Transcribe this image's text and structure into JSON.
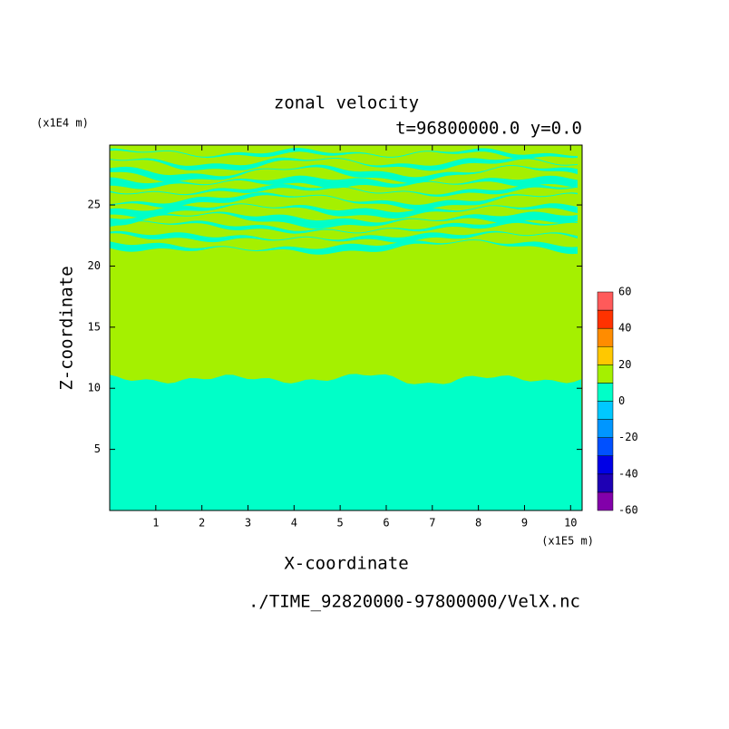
{
  "chart_data": {
    "type": "contour",
    "title": "zonal velocity",
    "subtitle": "t=96800000.0 y=0.0",
    "x_label": "X-coordinate",
    "y_label": "Z-coordinate",
    "x_unit": "(x1E5 m)",
    "y_unit": "(x1E4 m)",
    "source": "./TIME_92820000-97800000/VelX.nc",
    "xlim": [
      0,
      10.25
    ],
    "xticks": [
      1,
      2,
      3,
      4,
      5,
      6,
      7,
      8,
      9,
      10
    ],
    "ylim": [
      0,
      29.9
    ],
    "yticks": [
      5,
      10,
      15,
      20,
      25
    ],
    "colorbar": {
      "levels": [
        -60,
        -50,
        -40,
        -30,
        -20,
        -10,
        0,
        10,
        20,
        30,
        40,
        50,
        60
      ],
      "ticks": [
        -60,
        -40,
        -20,
        0,
        20,
        40,
        60
      ],
      "colors": [
        "#8200aa",
        "#1e00b4",
        "#0000e6",
        "#0050ff",
        "#0096ff",
        "#00c8ff",
        "#00ffc8",
        "#a5f000",
        "#ffc800",
        "#ff8c00",
        "#ff3200",
        "#ff5a5a",
        "#ffb4b4"
      ]
    }
  }
}
